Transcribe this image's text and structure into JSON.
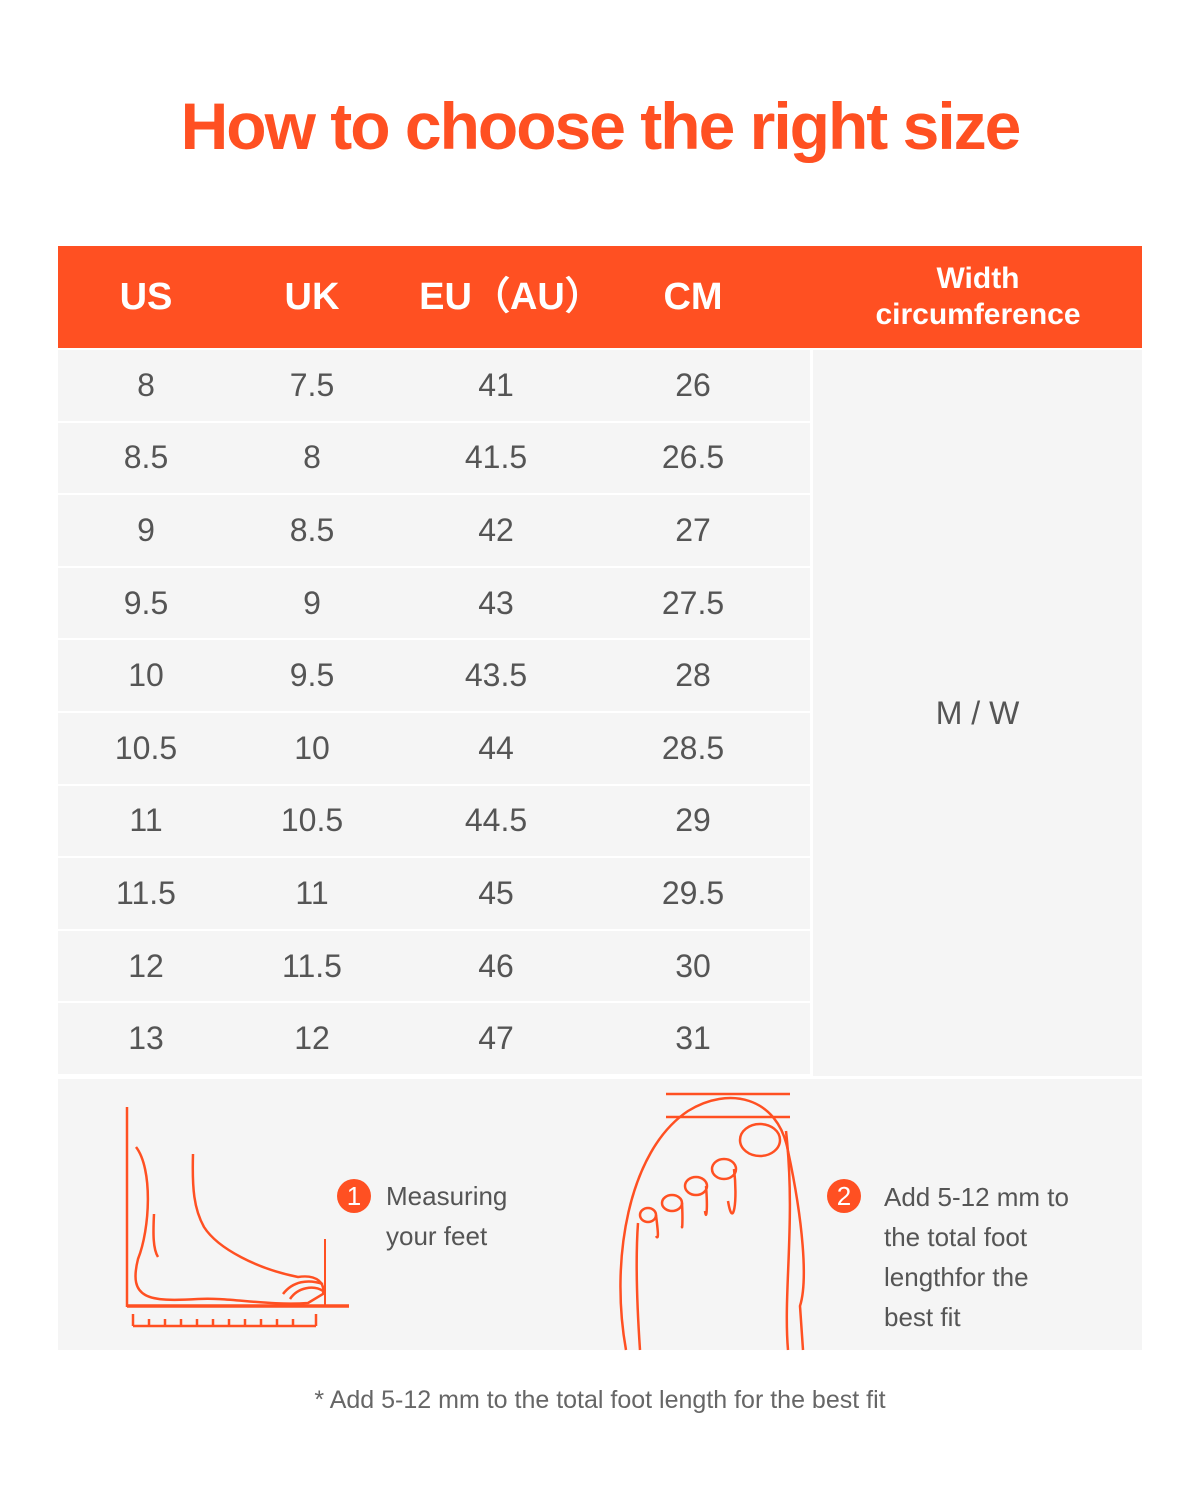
{
  "title": "How to choose the right size",
  "headers": [
    "US",
    "UK",
    "EU（AU）",
    "CM",
    "Width circumference"
  ],
  "rows": [
    [
      "8",
      "7.5",
      "41",
      "26"
    ],
    [
      "8.5",
      "8",
      "41.5",
      "26.5"
    ],
    [
      "9",
      "8.5",
      "42",
      "27"
    ],
    [
      "9.5",
      "9",
      "43",
      "27.5"
    ],
    [
      "10",
      "9.5",
      "43.5",
      "28"
    ],
    [
      "10.5",
      "10",
      "44",
      "28.5"
    ],
    [
      "11",
      "10.5",
      "44.5",
      "29"
    ],
    [
      "11.5",
      "11",
      "45",
      "29.5"
    ],
    [
      "12",
      "11.5",
      "46",
      "30"
    ],
    [
      "13",
      "12",
      "47",
      "31"
    ]
  ],
  "width_value": "M / W",
  "steps": [
    {
      "number": "1",
      "text": "Measuring your feet"
    },
    {
      "number": "2",
      "text": "Add 5-12 mm to the total foot lengthfor the best fit"
    }
  ],
  "footnote": "* Add 5-12 mm to the total foot length for the best fit",
  "colors": {
    "accent": "#FF5022",
    "row_bg": "#F5F5F5"
  }
}
